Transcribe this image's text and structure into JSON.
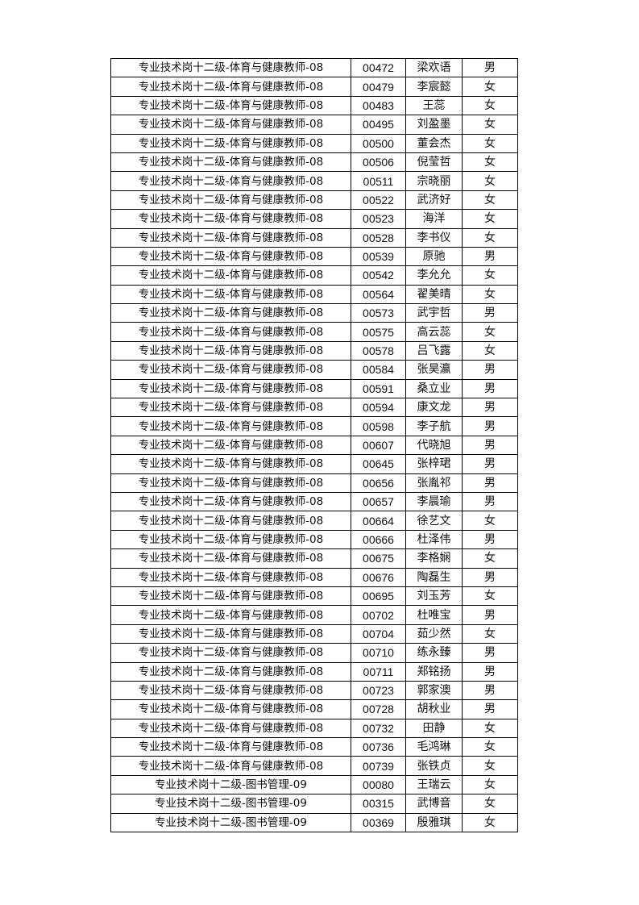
{
  "rows": [
    {
      "position": "专业技术岗十二级-体育与健康教师-08",
      "id": "00472",
      "name": "梁欢语",
      "gender": "男"
    },
    {
      "position": "专业技术岗十二级-体育与健康教师-08",
      "id": "00479",
      "name": "李宸懿",
      "gender": "女"
    },
    {
      "position": "专业技术岗十二级-体育与健康教师-08",
      "id": "00483",
      "name": "王蕊",
      "gender": "女"
    },
    {
      "position": "专业技术岗十二级-体育与健康教师-08",
      "id": "00495",
      "name": "刘盈墨",
      "gender": "女"
    },
    {
      "position": "专业技术岗十二级-体育与健康教师-08",
      "id": "00500",
      "name": "董会杰",
      "gender": "女"
    },
    {
      "position": "专业技术岗十二级-体育与健康教师-08",
      "id": "00506",
      "name": "倪莹哲",
      "gender": "女"
    },
    {
      "position": "专业技术岗十二级-体育与健康教师-08",
      "id": "00511",
      "name": "宗晓丽",
      "gender": "女"
    },
    {
      "position": "专业技术岗十二级-体育与健康教师-08",
      "id": "00522",
      "name": "武济好",
      "gender": "女"
    },
    {
      "position": "专业技术岗十二级-体育与健康教师-08",
      "id": "00523",
      "name": "海洋",
      "gender": "女"
    },
    {
      "position": "专业技术岗十二级-体育与健康教师-08",
      "id": "00528",
      "name": "李书仪",
      "gender": "女"
    },
    {
      "position": "专业技术岗十二级-体育与健康教师-08",
      "id": "00539",
      "name": "原驰",
      "gender": "男"
    },
    {
      "position": "专业技术岗十二级-体育与健康教师-08",
      "id": "00542",
      "name": "李允允",
      "gender": "女"
    },
    {
      "position": "专业技术岗十二级-体育与健康教师-08",
      "id": "00564",
      "name": "翟美晴",
      "gender": "女"
    },
    {
      "position": "专业技术岗十二级-体育与健康教师-08",
      "id": "00573",
      "name": "武宇哲",
      "gender": "男"
    },
    {
      "position": "专业技术岗十二级-体育与健康教师-08",
      "id": "00575",
      "name": "高云蕊",
      "gender": "女"
    },
    {
      "position": "专业技术岗十二级-体育与健康教师-08",
      "id": "00578",
      "name": "吕飞露",
      "gender": "女"
    },
    {
      "position": "专业技术岗十二级-体育与健康教师-08",
      "id": "00584",
      "name": "张昊瀛",
      "gender": "男"
    },
    {
      "position": "专业技术岗十二级-体育与健康教师-08",
      "id": "00591",
      "name": "桑立业",
      "gender": "男"
    },
    {
      "position": "专业技术岗十二级-体育与健康教师-08",
      "id": "00594",
      "name": "康文龙",
      "gender": "男"
    },
    {
      "position": "专业技术岗十二级-体育与健康教师-08",
      "id": "00598",
      "name": "李子航",
      "gender": "男"
    },
    {
      "position": "专业技术岗十二级-体育与健康教师-08",
      "id": "00607",
      "name": "代晓旭",
      "gender": "男"
    },
    {
      "position": "专业技术岗十二级-体育与健康教师-08",
      "id": "00645",
      "name": "张梓珺",
      "gender": "男"
    },
    {
      "position": "专业技术岗十二级-体育与健康教师-08",
      "id": "00656",
      "name": "张胤祁",
      "gender": "男"
    },
    {
      "position": "专业技术岗十二级-体育与健康教师-08",
      "id": "00657",
      "name": "李晨瑜",
      "gender": "男"
    },
    {
      "position": "专业技术岗十二级-体育与健康教师-08",
      "id": "00664",
      "name": "徐艺文",
      "gender": "女"
    },
    {
      "position": "专业技术岗十二级-体育与健康教师-08",
      "id": "00666",
      "name": "杜泽伟",
      "gender": "男"
    },
    {
      "position": "专业技术岗十二级-体育与健康教师-08",
      "id": "00675",
      "name": "李格娴",
      "gender": "女"
    },
    {
      "position": "专业技术岗十二级-体育与健康教师-08",
      "id": "00676",
      "name": "陶磊生",
      "gender": "男"
    },
    {
      "position": "专业技术岗十二级-体育与健康教师-08",
      "id": "00695",
      "name": "刘玉芳",
      "gender": "女"
    },
    {
      "position": "专业技术岗十二级-体育与健康教师-08",
      "id": "00702",
      "name": "杜唯宝",
      "gender": "男"
    },
    {
      "position": "专业技术岗十二级-体育与健康教师-08",
      "id": "00704",
      "name": "茹少然",
      "gender": "女"
    },
    {
      "position": "专业技术岗十二级-体育与健康教师-08",
      "id": "00710",
      "name": "练永臻",
      "gender": "男"
    },
    {
      "position": "专业技术岗十二级-体育与健康教师-08",
      "id": "00711",
      "name": "郑铭扬",
      "gender": "男"
    },
    {
      "position": "专业技术岗十二级-体育与健康教师-08",
      "id": "00723",
      "name": "郭家澳",
      "gender": "男"
    },
    {
      "position": "专业技术岗十二级-体育与健康教师-08",
      "id": "00728",
      "name": "胡秋业",
      "gender": "男"
    },
    {
      "position": "专业技术岗十二级-体育与健康教师-08",
      "id": "00732",
      "name": "田静",
      "gender": "女"
    },
    {
      "position": "专业技术岗十二级-体育与健康教师-08",
      "id": "00736",
      "name": "毛鸿琳",
      "gender": "女"
    },
    {
      "position": "专业技术岗十二级-体育与健康教师-08",
      "id": "00739",
      "name": "张铁贞",
      "gender": "女"
    },
    {
      "position": "专业技术岗十二级-图书管理-09",
      "id": "00080",
      "name": "王瑞云",
      "gender": "女"
    },
    {
      "position": "专业技术岗十二级-图书管理-09",
      "id": "00315",
      "name": "武博音",
      "gender": "女"
    },
    {
      "position": "专业技术岗十二级-图书管理-09",
      "id": "00369",
      "name": "殷雅琪",
      "gender": "女"
    }
  ]
}
